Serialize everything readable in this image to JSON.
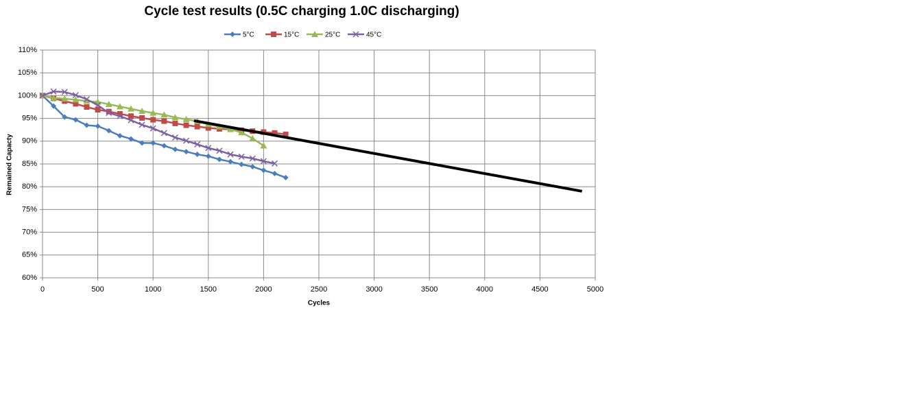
{
  "chart_data": {
    "type": "line",
    "title": "Cycle test results (0.5C charging 1.0C discharging)",
    "x_label": "Cycles",
    "y_label": "Remained Capacty",
    "xlim": [
      0,
      5000
    ],
    "xticks": [
      0,
      500,
      1000,
      1500,
      2000,
      2500,
      3000,
      3500,
      4000,
      4500,
      5000
    ],
    "ylim": [
      60,
      110
    ],
    "yticks": [
      {
        "value": 60,
        "label": "60%"
      },
      {
        "value": 65,
        "label": "65%"
      },
      {
        "value": 70,
        "label": "70%"
      },
      {
        "value": 75,
        "label": "75%"
      },
      {
        "value": 80,
        "label": "80%"
      },
      {
        "value": 85,
        "label": "85%"
      },
      {
        "value": 90,
        "label": "90%"
      },
      {
        "value": 95,
        "label": "95%"
      },
      {
        "value": 100,
        "label": "100%"
      },
      {
        "value": 105,
        "label": "105%"
      },
      {
        "value": 110,
        "label": "110%"
      }
    ],
    "grid": true,
    "legend": "top",
    "series": [
      {
        "name": "5°C",
        "color": "#4a7ebb",
        "marker": "diamond",
        "x": [
          0,
          100,
          200,
          300,
          400,
          500,
          600,
          700,
          800,
          900,
          1000,
          1100,
          1200,
          1300,
          1400,
          1500,
          1600,
          1700,
          1800,
          1900,
          2000,
          2100,
          2200
        ],
        "values": [
          100,
          97.7,
          95.3,
          94.7,
          93.5,
          93.3,
          92.3,
          91.2,
          90.5,
          89.6,
          89.6,
          89.0,
          88.2,
          87.7,
          87.1,
          86.7,
          86.0,
          85.5,
          84.9,
          84.4,
          83.6,
          82.9,
          82.0
        ]
      },
      {
        "name": "15°C",
        "color": "#be4b48",
        "marker": "square",
        "x": [
          0,
          100,
          200,
          300,
          400,
          500,
          600,
          700,
          800,
          900,
          1000,
          1100,
          1200,
          1300,
          1400,
          1500,
          1600,
          1700,
          1800,
          1900,
          2000,
          2100,
          2200
        ],
        "values": [
          100,
          99.4,
          98.8,
          98.2,
          97.5,
          96.9,
          96.5,
          96.0,
          95.5,
          95.1,
          94.7,
          94.4,
          93.9,
          93.5,
          93.2,
          92.9,
          92.7,
          92.6,
          92.4,
          92.2,
          92.0,
          91.8,
          91.5
        ]
      },
      {
        "name": "25°C",
        "color": "#98b954",
        "marker": "triangle",
        "x": [
          0,
          100,
          200,
          300,
          400,
          500,
          600,
          700,
          800,
          900,
          1000,
          1100,
          1200,
          1300,
          1400,
          1500,
          1600,
          1700,
          1800,
          1900,
          2000
        ],
        "values": [
          100,
          99.5,
          99.3,
          99.1,
          98.8,
          98.6,
          98.1,
          97.6,
          97.1,
          96.6,
          96.2,
          95.8,
          95.2,
          94.8,
          94.4,
          93.7,
          93.2,
          92.6,
          91.9,
          90.6,
          89.0
        ]
      },
      {
        "name": "45°C",
        "color": "#7d60a0",
        "marker": "x",
        "x": [
          0,
          100,
          200,
          300,
          400,
          500,
          600,
          700,
          800,
          900,
          1000,
          1100,
          1200,
          1300,
          1400,
          1500,
          1600,
          1700,
          1800,
          1900,
          2000,
          2100
        ],
        "values": [
          100,
          100.9,
          100.8,
          100.1,
          99.2,
          97.9,
          96.2,
          95.5,
          94.6,
          93.6,
          92.8,
          91.8,
          90.8,
          90.1,
          89.3,
          88.5,
          87.9,
          87.1,
          86.6,
          86.2,
          85.6,
          85.1
        ]
      },
      {
        "color": "#000000",
        "marker": "none",
        "x": [
          1370,
          4880
        ],
        "values": [
          94.5,
          79
        ]
      }
    ]
  }
}
